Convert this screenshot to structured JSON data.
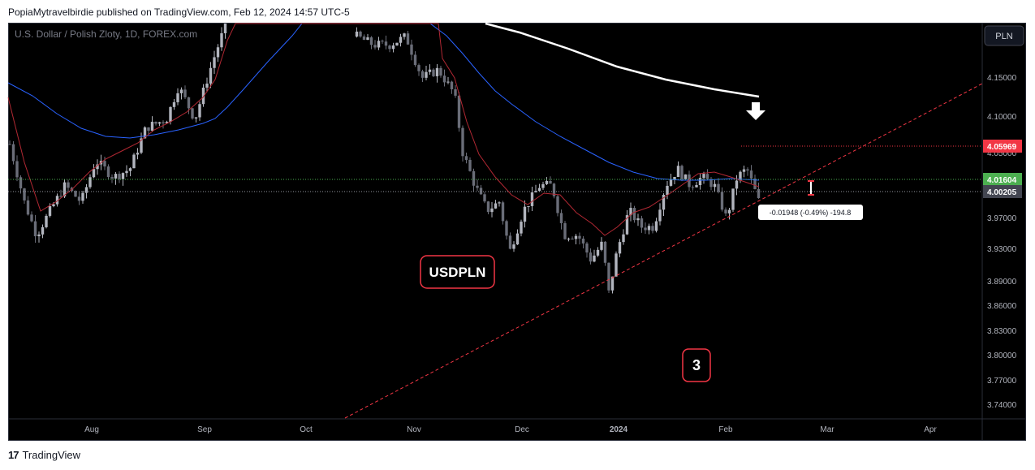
{
  "header": {
    "published": "PopiaMytravelbirdie published on TradingView.com, Feb 12, 2024 14:57 UTC-5"
  },
  "footer": {
    "brand": "TradingView",
    "logo": "tradingview-logo-icon"
  },
  "chart_data": {
    "type": "candlestick",
    "symbol_description": "U.S. Dollar / Polish Zloty, 1D, FOREX.com",
    "currency_button": "PLN",
    "annotations": {
      "label": "USDPLN",
      "number": "3",
      "arrow": "down-arrow-icon"
    },
    "x_ticks": [
      "Aug",
      "Sep",
      "Oct",
      "Nov",
      "Dec",
      "2024",
      "Feb",
      "Mar",
      "Apr"
    ],
    "y_ticks": [
      "4.15000",
      "4.10000",
      "4.05000",
      "4.01604",
      "4.00205",
      "3.97000",
      "3.93000",
      "3.89000",
      "3.86000",
      "3.83000",
      "3.80000",
      "3.77000",
      "3.74000"
    ],
    "price_labels": [
      {
        "value": "4.05969",
        "color": "#f23645"
      },
      {
        "value": "4.01604",
        "color": "#4caf50"
      },
      {
        "value": "4.00205",
        "color": "#434651"
      }
    ],
    "measure_label": "-0.01948 (-0.49%) -194.8",
    "colors": {
      "background": "#000000",
      "candles": "#b2b5be",
      "ma_fast": "#b22833",
      "ma_mid": "#2962ff",
      "ma_slow": "#ffffff",
      "trendline": "#f23645"
    }
  }
}
